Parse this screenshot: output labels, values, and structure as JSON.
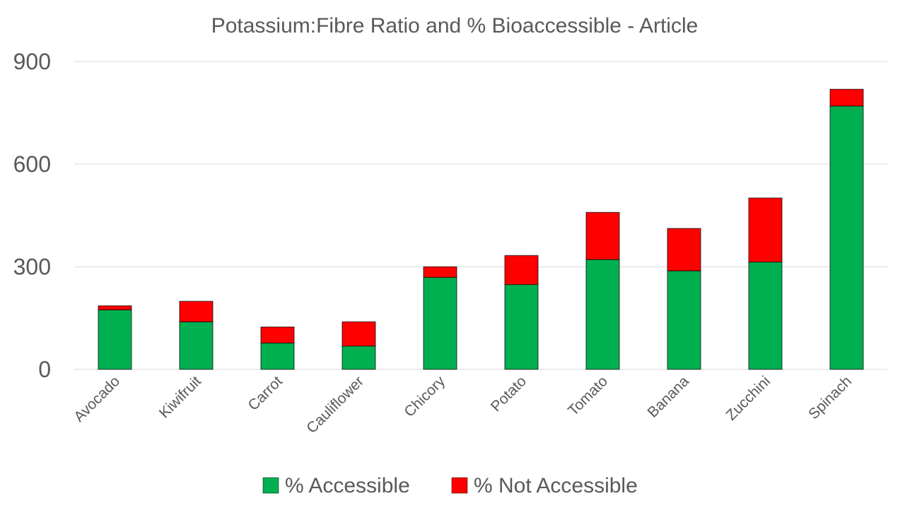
{
  "chart_data": {
    "type": "bar",
    "stacked": true,
    "title": "Potassium:Fibre Ratio and % Bioaccessible - Article",
    "xlabel": "",
    "ylabel": "",
    "ylim": [
      0,
      900
    ],
    "yticks": [
      0,
      300,
      600,
      900
    ],
    "grid": true,
    "legend_position": "bottom",
    "categories": [
      "Avocado",
      "Kiwifruit",
      "Carrot",
      "Cauliflower",
      "Chicory",
      "Potato",
      "Tomato",
      "Banana",
      "Zucchini",
      "Spinach"
    ],
    "series": [
      {
        "name": "% Accessible",
        "color": "#00b050",
        "values": [
          174,
          139,
          77,
          68,
          269,
          248,
          321,
          288,
          314,
          770
        ]
      },
      {
        "name": "% Not Accessible",
        "color": "#ff0000",
        "values": [
          12,
          60,
          47,
          71,
          31,
          85,
          138,
          124,
          187,
          49
        ]
      }
    ]
  }
}
